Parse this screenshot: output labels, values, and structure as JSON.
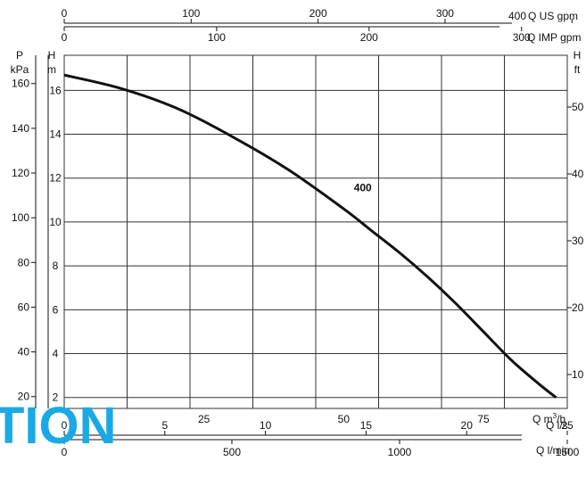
{
  "chart_data": {
    "type": "line",
    "title": "",
    "watermark": "TION",
    "colors": {
      "curve": "#111111",
      "grid": "#333333",
      "watermark": "#1ba9e6"
    },
    "x_axes": {
      "m3h": {
        "label": "Q m³/h",
        "label_main": "Q m",
        "label_sup": "3",
        "label_end": "/h",
        "range": [
          0,
          90
        ],
        "ticks": [
          0,
          25,
          50,
          75
        ]
      },
      "us_gpm": {
        "label": "Q US gpm",
        "range": [
          0,
          396.3
        ],
        "ticks": [
          0,
          100,
          200,
          300,
          400
        ]
      },
      "imp_gpm": {
        "label": "Q IMP gpm",
        "range": [
          0,
          330
        ],
        "ticks": [
          0,
          100,
          200,
          300
        ]
      },
      "ls": {
        "label": "Q l/s",
        "range": [
          0,
          25
        ],
        "ticks": [
          0,
          5,
          10,
          15,
          20,
          25
        ]
      },
      "lmin": {
        "label": "Q l/min",
        "range": [
          0,
          1500
        ],
        "ticks": [
          0,
          500,
          1000,
          1500
        ]
      }
    },
    "y_axes": {
      "head_m": {
        "label_top": "H",
        "label_unit": "m",
        "range": [
          1.5,
          17.6
        ],
        "ticks": [
          2,
          4,
          6,
          8,
          10,
          12,
          14,
          16
        ]
      },
      "pressure_kpa": {
        "label_top": "P",
        "label_unit": "kPa",
        "ticks": [
          20,
          40,
          60,
          80,
          100,
          120,
          140,
          160
        ]
      },
      "head_ft": {
        "label_top": "H",
        "label_unit": "ft",
        "ticks": [
          10,
          20,
          30,
          40,
          50
        ]
      }
    },
    "grid": true,
    "series": [
      {
        "name": "400",
        "x": [
          0,
          10,
          20,
          30,
          40,
          50,
          55,
          60,
          65,
          70,
          75,
          80,
          85,
          88
        ],
        "y": [
          16.7,
          16.1,
          15.2,
          13.9,
          12.4,
          10.6,
          9.6,
          8.6,
          7.5,
          6.3,
          5.0,
          3.7,
          2.6,
          2.0
        ]
      }
    ]
  }
}
